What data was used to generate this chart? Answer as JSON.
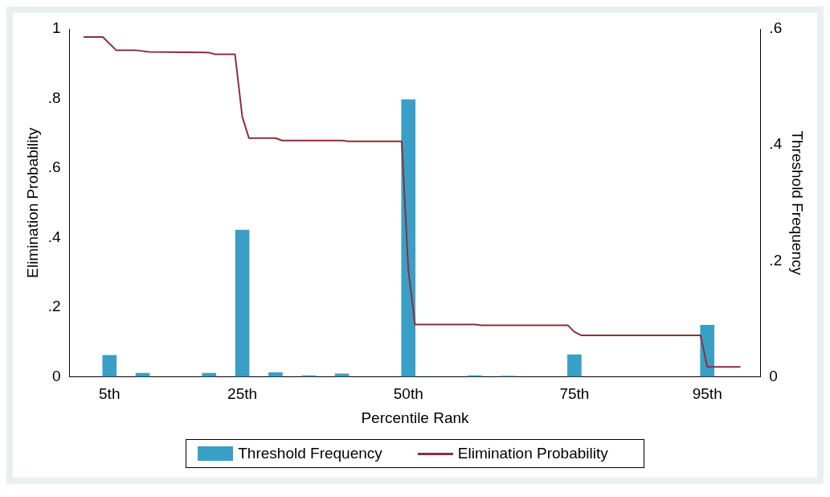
{
  "chart_data": {
    "type": "bar",
    "xlabel": "Percentile Rank",
    "ylabel": "Elimination Probability",
    "y2label": "Threshold Frequency",
    "xlim": [
      -1,
      103
    ],
    "xticks": [
      {
        "value": 5,
        "label": "5th"
      },
      {
        "value": 25,
        "label": "25th"
      },
      {
        "value": 50,
        "label": "50th"
      },
      {
        "value": 75,
        "label": "75th"
      },
      {
        "value": 95,
        "label": "95th"
      }
    ],
    "ylim": [
      0,
      1
    ],
    "yticks": [
      0,
      {
        "value": 0.2,
        "label": ".2"
      },
      {
        "value": 0.4,
        "label": ".4"
      },
      {
        "value": 0.6,
        "label": ".6"
      },
      {
        "value": 0.8,
        "label": ".8"
      },
      1
    ],
    "y2lim": [
      0,
      0.6
    ],
    "y2ticks": [
      0,
      {
        "value": 0.2,
        "label": ".2"
      },
      {
        "value": 0.4,
        "label": ".4"
      },
      {
        "value": 0.6,
        "label": ".6"
      }
    ],
    "legend": "bottom",
    "grid": false,
    "series": [
      {
        "name": "Threshold Frequency",
        "axis": "y2",
        "color": "#3a9fc7",
        "x": [
          5,
          10,
          20,
          25,
          30,
          35,
          40,
          50,
          60,
          65,
          75,
          95
        ],
        "values": [
          0.037,
          0.006,
          0.006,
          0.253,
          0.007,
          0.002,
          0.005,
          0.478,
          0.002,
          0.001,
          0.038,
          0.089
        ]
      },
      {
        "name": "Elimination Probability",
        "type": "line",
        "color": "#8c2f3a",
        "marker": "none",
        "line_style": "solid",
        "x": [
          1.1,
          4,
          6,
          8.9,
          10.9,
          20,
          20.9,
          23.9,
          25,
          26,
          30,
          31,
          40,
          41,
          49,
          50,
          51,
          60,
          61,
          74,
          75,
          76,
          94,
          95,
          100
        ],
        "values": [
          0.977,
          0.977,
          0.939,
          0.939,
          0.934,
          0.932,
          0.927,
          0.927,
          0.747,
          0.686,
          0.686,
          0.679,
          0.679,
          0.677,
          0.677,
          0.307,
          0.15,
          0.15,
          0.148,
          0.148,
          0.129,
          0.119,
          0.119,
          0.028,
          0.028
        ]
      }
    ]
  }
}
